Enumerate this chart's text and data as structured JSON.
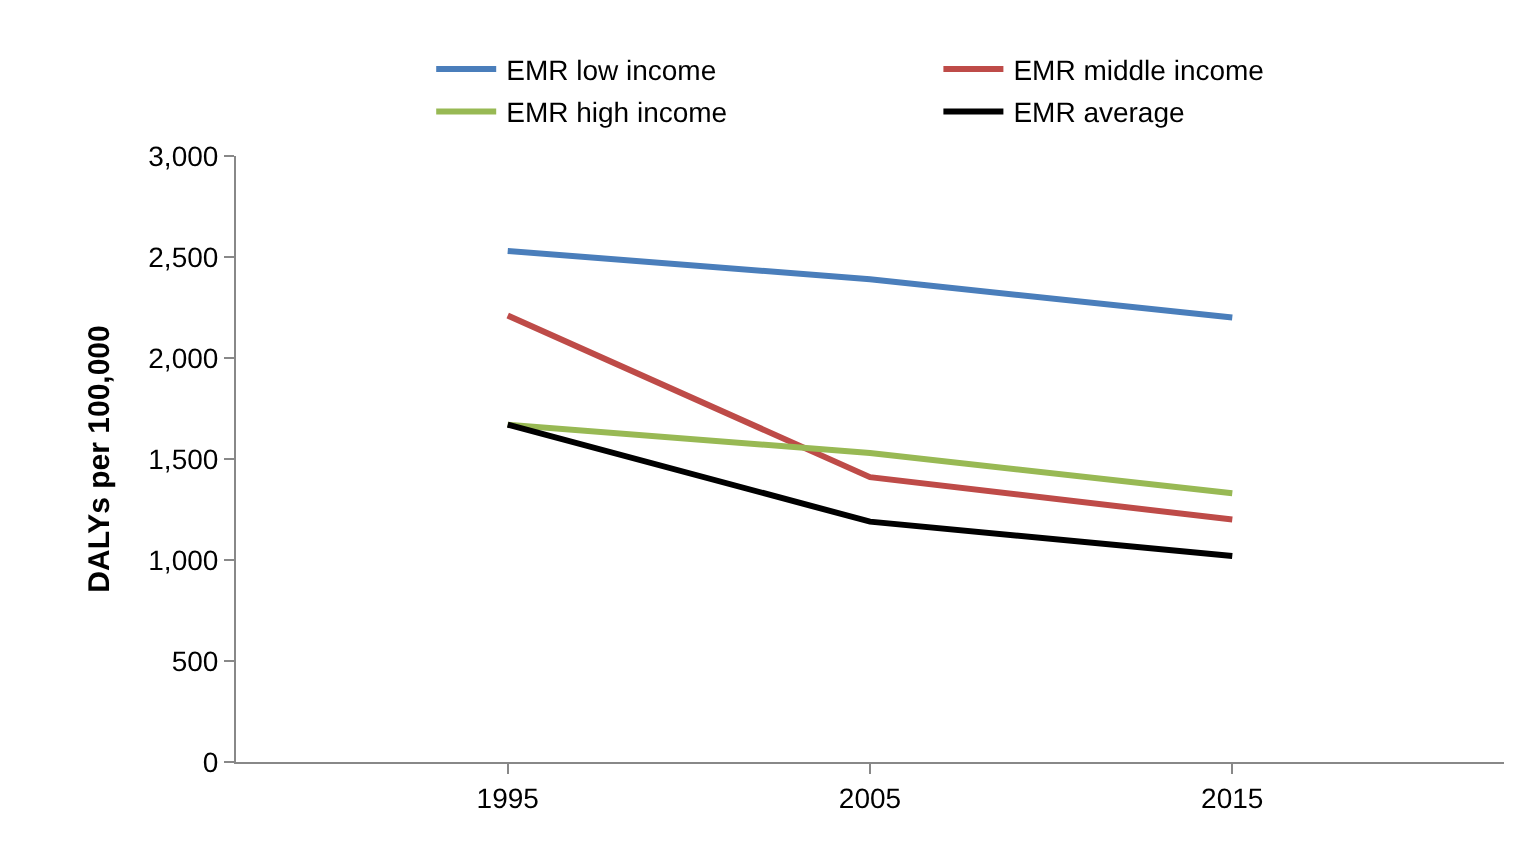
{
  "chart_data": {
    "type": "line",
    "ylabel": "DALYs per 100,000",
    "categories": [
      "1995",
      "2005",
      "2015"
    ],
    "series": [
      {
        "name": "EMR low income",
        "color": "#4a7ebb",
        "values": [
          2530,
          2390,
          2200
        ]
      },
      {
        "name": "EMR middle income",
        "color": "#be4b48",
        "values": [
          2210,
          1410,
          1200
        ]
      },
      {
        "name": "EMR high income",
        "color": "#98b954",
        "values": [
          1670,
          1530,
          1330
        ]
      },
      {
        "name": "EMR average",
        "color": "#000000",
        "values": [
          1670,
          1190,
          1020
        ]
      }
    ],
    "ylim": [
      0,
      3000
    ],
    "yticks": [
      {
        "value": 0,
        "label": "0"
      },
      {
        "value": 500,
        "label": "500"
      },
      {
        "value": 1000,
        "label": "1,000"
      },
      {
        "value": 1500,
        "label": "1,500"
      },
      {
        "value": 2000,
        "label": "2,000"
      },
      {
        "value": 2500,
        "label": "2,500"
      },
      {
        "value": 3000,
        "label": "3,000"
      }
    ],
    "legend": "top",
    "marker": "none",
    "line_style": "solid"
  }
}
